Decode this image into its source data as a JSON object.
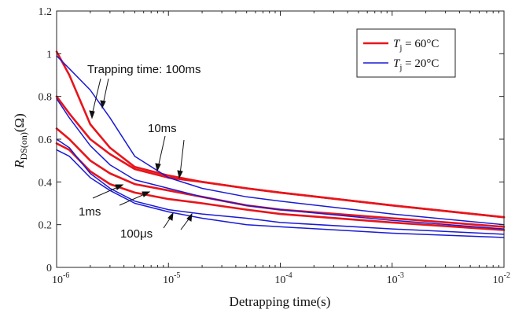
{
  "chart_data": {
    "type": "line",
    "title": "",
    "xlabel": "Detrapping time(s)",
    "ylabel": "R_DS(on)(Ω)",
    "x_scale": "log",
    "xlim": [
      1e-06,
      0.01
    ],
    "ylim": [
      0,
      1.2
    ],
    "x_ticks": [
      {
        "value": 1e-06,
        "base": "10",
        "exp": "-6"
      },
      {
        "value": 1e-05,
        "base": "10",
        "exp": "-5"
      },
      {
        "value": 0.0001,
        "base": "10",
        "exp": "-4"
      },
      {
        "value": 0.001,
        "base": "10",
        "exp": "-3"
      },
      {
        "value": 0.01,
        "base": "10",
        "exp": "-2"
      }
    ],
    "y_ticks": [
      0,
      0.2,
      0.4,
      0.6,
      0.8,
      1,
      1.2
    ],
    "y_tick_labels": [
      "0",
      "0.2",
      "0.4",
      "0.6",
      "0.8",
      "1",
      "1.2"
    ],
    "grid": false,
    "legend": {
      "placement": "top-right",
      "entries": [
        {
          "label_main": "T",
          "label_sub": "j",
          "label_rest": " = 60°C",
          "color": "#e8141b"
        },
        {
          "label_main": "T",
          "label_sub": "j",
          "label_rest": " = 20°C",
          "color": "#1a1ad6"
        }
      ]
    },
    "annotations": [
      {
        "text": "Trapping time: 100ms"
      },
      {
        "text": "10ms"
      },
      {
        "text": "1ms"
      },
      {
        "text": "100μs"
      }
    ],
    "series": [
      {
        "group": "60C",
        "color": "#e8141b",
        "x": [
          1e-06,
          1.3e-06,
          2e-06,
          3e-06,
          5e-06,
          1e-05,
          2e-05,
          5e-05,
          0.0001,
          0.001,
          0.01
        ],
        "y": [
          1.01,
          0.9,
          0.67,
          0.56,
          0.47,
          0.43,
          0.4,
          0.37,
          0.35,
          0.29,
          0.235
        ]
      },
      {
        "group": "60C",
        "color": "#e8141b",
        "x": [
          1e-06,
          1.3e-06,
          2e-06,
          3e-06,
          5e-06,
          1e-05,
          2e-05,
          5e-05,
          0.0001,
          0.001,
          0.01
        ],
        "y": [
          0.8,
          0.72,
          0.6,
          0.53,
          0.46,
          0.42,
          0.4,
          0.37,
          0.35,
          0.29,
          0.235
        ]
      },
      {
        "group": "60C",
        "color": "#e8141b",
        "x": [
          1e-06,
          1.3e-06,
          2e-06,
          3e-06,
          5e-06,
          1e-05,
          2e-05,
          5e-05,
          0.0001,
          0.001,
          0.01
        ],
        "y": [
          0.65,
          0.6,
          0.5,
          0.44,
          0.39,
          0.36,
          0.33,
          0.29,
          0.27,
          0.23,
          0.19
        ]
      },
      {
        "group": "60C",
        "color": "#e8141b",
        "x": [
          1e-06,
          1.3e-06,
          2e-06,
          3e-06,
          5e-06,
          1e-05,
          2e-05,
          5e-05,
          0.0001,
          0.001,
          0.01
        ],
        "y": [
          0.58,
          0.55,
          0.45,
          0.39,
          0.35,
          0.32,
          0.3,
          0.27,
          0.25,
          0.21,
          0.175
        ]
      },
      {
        "group": "20C",
        "color": "#1a1ad6",
        "x": [
          1e-06,
          1.3e-06,
          2e-06,
          3e-06,
          5e-06,
          1e-05,
          2e-05,
          5e-05,
          0.0001,
          0.001,
          0.01
        ],
        "y": [
          0.99,
          0.93,
          0.83,
          0.7,
          0.52,
          0.42,
          0.37,
          0.33,
          0.31,
          0.25,
          0.2
        ]
      },
      {
        "group": "20C",
        "color": "#1a1ad6",
        "x": [
          1e-06,
          1.3e-06,
          2e-06,
          3e-06,
          5e-06,
          1e-05,
          2e-05,
          5e-05,
          0.0001,
          0.001,
          0.01
        ],
        "y": [
          0.79,
          0.7,
          0.57,
          0.48,
          0.41,
          0.37,
          0.33,
          0.29,
          0.27,
          0.22,
          0.18
        ]
      },
      {
        "group": "20C",
        "color": "#1a1ad6",
        "x": [
          1e-06,
          1.3e-06,
          2e-06,
          3e-06,
          5e-06,
          1e-05,
          2e-05,
          5e-05,
          0.0001,
          0.001,
          0.01
        ],
        "y": [
          0.6,
          0.56,
          0.44,
          0.37,
          0.31,
          0.27,
          0.25,
          0.23,
          0.21,
          0.18,
          0.155
        ]
      },
      {
        "group": "20C",
        "color": "#1a1ad6",
        "x": [
          1e-06,
          1.3e-06,
          2e-06,
          3e-06,
          5e-06,
          1e-05,
          2e-05,
          5e-05,
          0.0001,
          0.001,
          0.01
        ],
        "y": [
          0.55,
          0.52,
          0.42,
          0.36,
          0.3,
          0.26,
          0.23,
          0.2,
          0.19,
          0.16,
          0.14
        ]
      }
    ]
  }
}
